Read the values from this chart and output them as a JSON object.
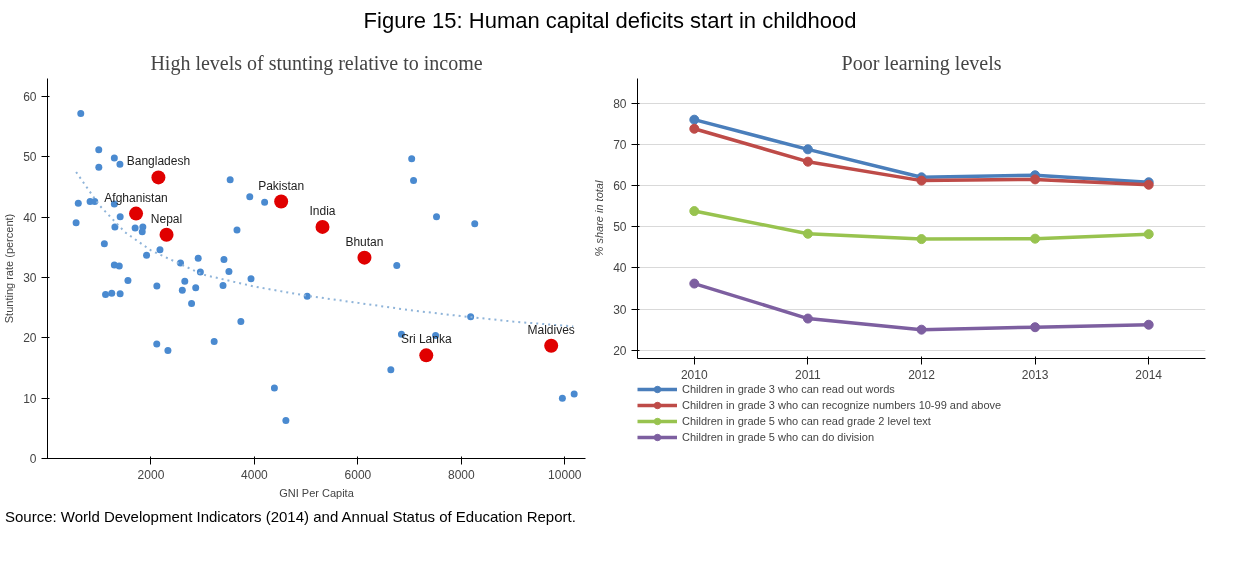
{
  "chart_data": [
    {
      "type": "scatter",
      "title": "High levels of stunting relative to income",
      "xlabel": "GNI Per Capita",
      "ylabel": "Stunting rate (percent)",
      "xlim": [
        0,
        10400
      ],
      "ylim": [
        0,
        63
      ],
      "xticks": [
        2000,
        4000,
        6000,
        8000,
        10000
      ],
      "yticks": [
        0,
        10,
        20,
        30,
        40,
        50,
        60
      ],
      "grid": false,
      "legend": false,
      "marker": "circle",
      "annotations": [
        "Figure 15: Human capital deficits start in childhood"
      ],
      "series": [
        {
          "color": "#4a8ad0",
          "x": [
            643,
            991,
            1292,
            992,
            1400,
            595,
            823,
            913,
            1292,
            553,
            1405,
            1303,
            1694,
            1843,
            1831,
            1099,
            2174,
            1915,
            1292,
            1387,
            2571,
            2913,
            2955,
            3411,
            3507,
            3531,
            3910,
            4197,
            3663,
            1555,
            2114,
            2654,
            2865,
            2606,
            3393,
            3934,
            1122,
            1242,
            1404,
            2785,
            2112,
            2328,
            3222,
            3738,
            4386,
            4608,
            5020,
            8180,
            6842,
            7502,
            6637,
            9953,
            10181,
            7040,
            7076,
            7520,
            8259,
            6752
          ],
          "values": [
            57.2,
            51.2,
            49.8,
            48.3,
            48.8,
            42.3,
            42.6,
            42.6,
            42.2,
            39.1,
            40.1,
            38.4,
            38.2,
            38.4,
            37.6,
            35.6,
            34.6,
            33.7,
            32.1,
            31.9,
            32.4,
            33.2,
            30.9,
            33.0,
            31.0,
            46.2,
            43.4,
            42.5,
            37.9,
            29.5,
            28.6,
            29.4,
            28.3,
            27.9,
            28.7,
            29.8,
            27.2,
            27.4,
            27.3,
            25.7,
            19.0,
            17.9,
            19.4,
            22.7,
            11.7,
            6.3,
            26.9,
            23.5,
            20.6,
            20.4,
            14.7,
            10.0,
            10.7,
            49.7,
            46.1,
            40.1,
            38.9,
            32.0
          ]
        },
        {
          "color": "#e00000",
          "x": [
            2144,
            1712,
            2301,
            4517,
            5316,
            6127,
            7322,
            9737
          ],
          "values": [
            46.6,
            40.6,
            37.1,
            42.6,
            38.4,
            33.3,
            17.1,
            18.7
          ],
          "value_labels": [
            "Bangladesh",
            "Afghanistan",
            "Nepal",
            "Pakistan",
            "India",
            "Bhutan",
            "Sri Lanka",
            "Maldives"
          ]
        },
        {
          "type": "line",
          "color": "#8fb4d9",
          "line_style": "dotted",
          "marker": "none",
          "x": [
            553,
            1000,
            1500,
            2000,
            3000,
            4000,
            5000,
            6000,
            7000,
            8000,
            9000,
            10163
          ],
          "values": [
            47.5,
            42,
            37.5,
            34.5,
            30.5,
            28.5,
            27,
            25.8,
            24.6,
            23.6,
            22.7,
            21.9
          ]
        }
      ]
    },
    {
      "type": "line",
      "title": "Poor learning levels",
      "ylabel": "% share in total",
      "categories": [
        "2010",
        "2011",
        "2012",
        "2013",
        "2014"
      ],
      "ylim": [
        18,
        86
      ],
      "yticks": [
        20,
        30,
        40,
        50,
        60,
        70,
        80
      ],
      "grid": "y",
      "legend": "bottom",
      "marker": "circle",
      "line_style": "solid",
      "annotations": [
        "Source: World Development Indicators (2014) and Annual Status of Education Report."
      ],
      "series": [
        {
          "name": "Children in grade 3 who can read out words",
          "color": "#4a7ebb",
          "values": [
            76,
            68.8,
            62,
            62.5,
            60.8
          ]
        },
        {
          "name": "Children in grade 3 who can recognize numbers 10-99 and above",
          "color": "#be4b48",
          "values": [
            73.8,
            65.8,
            61.2,
            61.5,
            60.2
          ]
        },
        {
          "name": "Children in grade 5 who can read grade 2 level text",
          "color": "#98c34f",
          "values": [
            53.8,
            48.3,
            47,
            47.1,
            48.2
          ]
        },
        {
          "name": "Children in grade 5 who can do division",
          "color": "#7d5fa0",
          "values": [
            36.2,
            27.7,
            25,
            25.6,
            26.2
          ]
        }
      ]
    }
  ]
}
